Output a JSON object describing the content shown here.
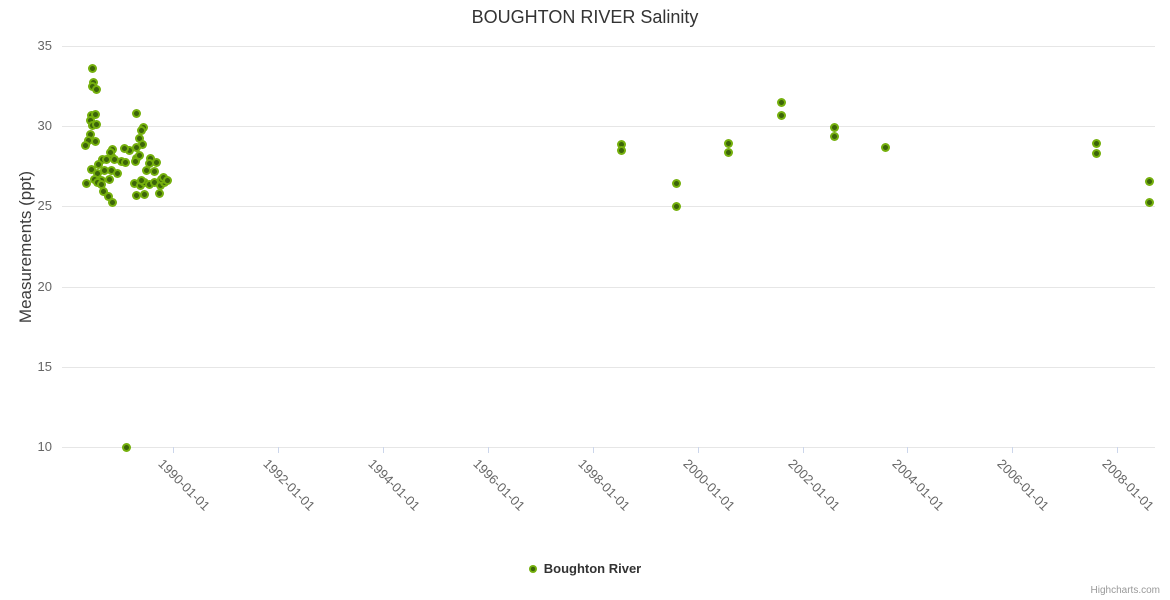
{
  "title": "BOUGHTON RIVER Salinity",
  "legend": {
    "label": "Boughton River"
  },
  "credits": {
    "label": "Highcharts.com"
  },
  "colors": {
    "marker_outer": "#75b00d",
    "marker_inner": "#3c6509",
    "gridline": "#e6e6e6",
    "axis_line": "#ccd6eb",
    "title_text": "#333333",
    "tick_text": "#666666"
  },
  "chart_data": {
    "type": "scatter",
    "title": "BOUGHTON RIVER Salinity",
    "xlabel": "",
    "ylabel": "Measurements (ppt)",
    "legend_position": "bottom-center",
    "grid": "horizontal-only",
    "xlim": [
      1987.88,
      2008.72
    ],
    "ylim": [
      10,
      35
    ],
    "yticks": [
      10,
      15,
      20,
      25,
      30,
      35
    ],
    "xticks": [
      {
        "year": 1990,
        "label": "1990-01-01"
      },
      {
        "year": 1992,
        "label": "1992-01-01"
      },
      {
        "year": 1994,
        "label": "1994-01-01"
      },
      {
        "year": 1996,
        "label": "1996-01-01"
      },
      {
        "year": 1998,
        "label": "1998-01-01"
      },
      {
        "year": 2000,
        "label": "2000-01-01"
      },
      {
        "year": 2002,
        "label": "2002-01-01"
      },
      {
        "year": 2004,
        "label": "2004-01-01"
      },
      {
        "year": 2006,
        "label": "2006-01-01"
      },
      {
        "year": 2008,
        "label": "2008-01-01"
      }
    ],
    "series": [
      {
        "name": "Boughton River",
        "points": [
          [
            1988.47,
            33.6
          ],
          [
            1988.49,
            32.7
          ],
          [
            1988.46,
            32.45
          ],
          [
            1988.53,
            32.3
          ],
          [
            1988.44,
            30.65
          ],
          [
            1988.52,
            30.7
          ],
          [
            1988.42,
            30.35
          ],
          [
            1988.47,
            30.05
          ],
          [
            1988.54,
            30.1
          ],
          [
            1988.43,
            29.5
          ],
          [
            1988.38,
            29.1
          ],
          [
            1988.52,
            29.05
          ],
          [
            1988.33,
            28.8
          ],
          [
            1988.84,
            28.55
          ],
          [
            1988.83,
            28.1
          ],
          [
            1988.8,
            28.35
          ],
          [
            1988.65,
            27.9
          ],
          [
            1988.72,
            27.9
          ],
          [
            1988.88,
            27.95
          ],
          [
            1988.58,
            27.6
          ],
          [
            1988.44,
            27.3
          ],
          [
            1988.55,
            27.05
          ],
          [
            1988.69,
            27.25
          ],
          [
            1988.82,
            27.25
          ],
          [
            1988.93,
            27.05
          ],
          [
            1988.5,
            26.7
          ],
          [
            1988.63,
            26.6
          ],
          [
            1988.79,
            26.65
          ],
          [
            1988.35,
            26.45
          ],
          [
            1988.56,
            26.5
          ],
          [
            1988.63,
            26.35
          ],
          [
            1988.68,
            25.95
          ],
          [
            1988.77,
            25.6
          ],
          [
            1988.84,
            25.25
          ],
          [
            1989.01,
            27.8
          ],
          [
            1989.1,
            27.75
          ],
          [
            1989.3,
            30.8
          ],
          [
            1989.43,
            29.95
          ],
          [
            1989.39,
            29.75
          ],
          [
            1989.35,
            29.25
          ],
          [
            1989.42,
            28.85
          ],
          [
            1989.31,
            28.7
          ],
          [
            1989.17,
            28.5
          ],
          [
            1989.08,
            28.6
          ],
          [
            1989.3,
            28.0
          ],
          [
            1989.57,
            28.0
          ],
          [
            1989.36,
            28.2
          ],
          [
            1989.28,
            27.8
          ],
          [
            1989.55,
            27.7
          ],
          [
            1989.68,
            27.75
          ],
          [
            1989.5,
            27.25
          ],
          [
            1989.64,
            27.15
          ],
          [
            1989.26,
            26.4
          ],
          [
            1989.37,
            26.3
          ],
          [
            1989.46,
            26.5
          ],
          [
            1989.54,
            26.35
          ],
          [
            1989.64,
            26.5
          ],
          [
            1989.75,
            26.3
          ],
          [
            1989.83,
            26.5
          ],
          [
            1989.39,
            26.6
          ],
          [
            1989.77,
            26.65
          ],
          [
            1989.82,
            26.8
          ],
          [
            1989.89,
            26.6
          ],
          [
            1989.3,
            25.7
          ],
          [
            1989.45,
            25.75
          ],
          [
            1989.73,
            25.8
          ],
          [
            1989.11,
            10.0
          ],
          [
            1998.55,
            28.85
          ],
          [
            1998.55,
            28.5
          ],
          [
            1999.59,
            26.45
          ],
          [
            1999.59,
            25.0
          ],
          [
            2000.58,
            28.9
          ],
          [
            2000.58,
            28.35
          ],
          [
            2001.59,
            31.45
          ],
          [
            2001.59,
            30.65
          ],
          [
            2002.6,
            29.95
          ],
          [
            2002.6,
            29.35
          ],
          [
            2003.59,
            28.65
          ],
          [
            2007.6,
            28.9
          ],
          [
            2007.6,
            28.3
          ],
          [
            2008.61,
            26.55
          ],
          [
            2008.61,
            25.25
          ]
        ]
      }
    ]
  }
}
